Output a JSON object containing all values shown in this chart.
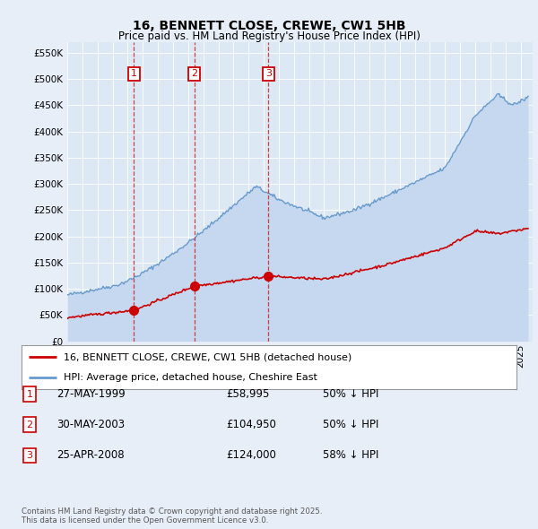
{
  "title": "16, BENNETT CLOSE, CREWE, CW1 5HB",
  "subtitle": "Price paid vs. HM Land Registry's House Price Index (HPI)",
  "background_color": "#e8eef8",
  "plot_bg_color": "#dde8f5",
  "yticks": [
    0,
    50000,
    100000,
    150000,
    200000,
    250000,
    300000,
    350000,
    400000,
    450000,
    500000,
    550000
  ],
  "ylim": [
    0,
    570000
  ],
  "xlim_start": 1995.0,
  "xlim_end": 2025.8,
  "transactions": [
    {
      "date": 1999.41,
      "price": 58995,
      "label": "1"
    },
    {
      "date": 2003.41,
      "price": 104950,
      "label": "2"
    },
    {
      "date": 2008.31,
      "price": 124000,
      "label": "3"
    }
  ],
  "transaction_color": "#cc0000",
  "hpi_line_color": "#6699cc",
  "hpi_fill_color": "#c5d8f0",
  "legend_entries": [
    "16, BENNETT CLOSE, CREWE, CW1 5HB (detached house)",
    "HPI: Average price, detached house, Cheshire East"
  ],
  "table_rows": [
    {
      "num": "1",
      "date": "27-MAY-1999",
      "price": "£58,995",
      "note": "50% ↓ HPI"
    },
    {
      "num": "2",
      "date": "30-MAY-2003",
      "price": "£104,950",
      "note": "50% ↓ HPI"
    },
    {
      "num": "3",
      "date": "25-APR-2008",
      "price": "£124,000",
      "note": "58% ↓ HPI"
    }
  ],
  "footer": "Contains HM Land Registry data © Crown copyright and database right 2025.\nThis data is licensed under the Open Government Licence v3.0.",
  "vline_color": "#cc2222"
}
